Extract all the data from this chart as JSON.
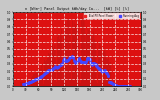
{
  "title": "n [W/m²] Panel Output kWh/day Ca...  [kW] [%] [%]",
  "background_color": "#c8c8c8",
  "plot_bg_color": "#dd1111",
  "grid_color": "#ffffff",
  "bar_color": "#cc1111",
  "avg_color": "#4444ff",
  "legend_bar_color": "#ee2222",
  "legend_avg_color": "#4444ff",
  "legend_labels": [
    "Total PV Panel Power",
    "Running Avg"
  ],
  "num_points": 300,
  "xlim": [
    0,
    300
  ],
  "ylim": [
    0,
    1.0
  ],
  "dpi": 100,
  "figw": 1.6,
  "figh": 1.0
}
